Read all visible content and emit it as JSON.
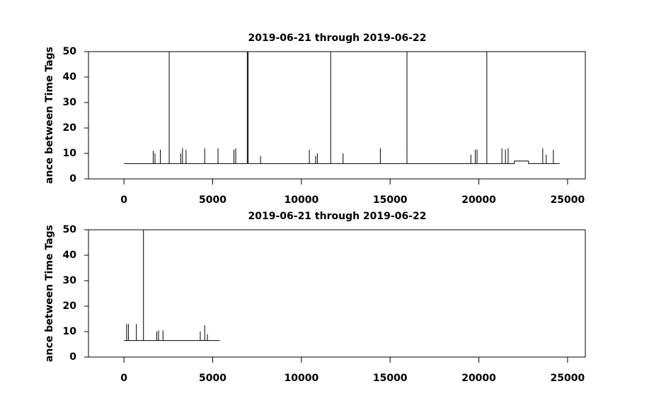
{
  "chart_data": [
    {
      "type": "line",
      "title": "2019-06-21 through 2019-06-22",
      "y_label": "ance between Time Tags",
      "xlim": [
        -2000,
        26000
      ],
      "xticks": [
        0,
        5000,
        10000,
        15000,
        20000,
        25000
      ],
      "ylim": [
        0,
        50
      ],
      "yticks": [
        0,
        10,
        20,
        30,
        40,
        50
      ],
      "color": "#000000",
      "x": [
        0,
        1650,
        1650,
        1650,
        1750,
        1750,
        1750,
        2050,
        2050,
        2050,
        2550,
        2550,
        2550,
        3200,
        3200,
        3200,
        3300,
        3300,
        3300,
        3500,
        3500,
        3500,
        4550,
        4550,
        4550,
        5300,
        5300,
        5300,
        6200,
        6200,
        6200,
        6300,
        6300,
        6300,
        6950,
        6950,
        7000,
        7000,
        7700,
        7700,
        7700,
        10450,
        10450,
        10450,
        10800,
        10800,
        10800,
        10900,
        10900,
        10900,
        11650,
        11650,
        11650,
        12350,
        12350,
        12350,
        14450,
        14450,
        14450,
        15950,
        15950,
        15950,
        19550,
        19550,
        19550,
        19800,
        19800,
        19800,
        19900,
        19900,
        19900,
        20450,
        20450,
        20450,
        21300,
        21300,
        21300,
        21500,
        21500,
        21500,
        21650,
        21650,
        21650,
        22000,
        22000,
        22800,
        22800,
        23600,
        23600,
        23600,
        23800,
        23800,
        23800,
        24200,
        24200,
        24200,
        24550
      ],
      "values": [
        6,
        6,
        11,
        6,
        6,
        10,
        6,
        6,
        11.5,
        6,
        6,
        50,
        6,
        6,
        10,
        6,
        6,
        12,
        6,
        6,
        11.5,
        6,
        6,
        12,
        6,
        6,
        12,
        6,
        6,
        11.5,
        6,
        6,
        12,
        6,
        6,
        50,
        50,
        6,
        6,
        9,
        6,
        6,
        11.5,
        6,
        6,
        9,
        6,
        6,
        10,
        6,
        6,
        50,
        6,
        6,
        10,
        6,
        6,
        12,
        6,
        6,
        50,
        6,
        6,
        9.5,
        6,
        6,
        11.5,
        6,
        6,
        11.5,
        6,
        6,
        50,
        6,
        6,
        12,
        6,
        6,
        11.5,
        6,
        6,
        12,
        6,
        6,
        7,
        7,
        6,
        6,
        12,
        6,
        6,
        9.5,
        6,
        6,
        11.5,
        6,
        6
      ]
    },
    {
      "type": "line",
      "title": "2019-06-21 through 2019-06-22",
      "y_label": "ance between Time Tags",
      "xlim": [
        -2000,
        26000
      ],
      "xticks": [
        0,
        5000,
        10000,
        15000,
        20000,
        25000
      ],
      "ylim": [
        0,
        50
      ],
      "yticks": [
        0,
        10,
        20,
        30,
        40,
        50
      ],
      "color": "#000000",
      "x": [
        0,
        150,
        150,
        150,
        250,
        250,
        250,
        700,
        700,
        700,
        1100,
        1100,
        1100,
        1850,
        1850,
        1850,
        1950,
        1950,
        1950,
        2200,
        2200,
        2200,
        4300,
        4300,
        4300,
        4550,
        4550,
        4550,
        4700,
        4700,
        4700,
        5400
      ],
      "values": [
        6.5,
        6.5,
        13,
        6.5,
        6.5,
        13,
        6.5,
        6.5,
        13,
        6.5,
        6.5,
        50,
        6.5,
        6.5,
        10,
        6.5,
        6.5,
        10.5,
        6.5,
        6.5,
        10.5,
        6.5,
        6.5,
        10,
        6.5,
        6.5,
        12.5,
        6.5,
        6.5,
        9,
        6.5,
        6.5
      ]
    }
  ]
}
